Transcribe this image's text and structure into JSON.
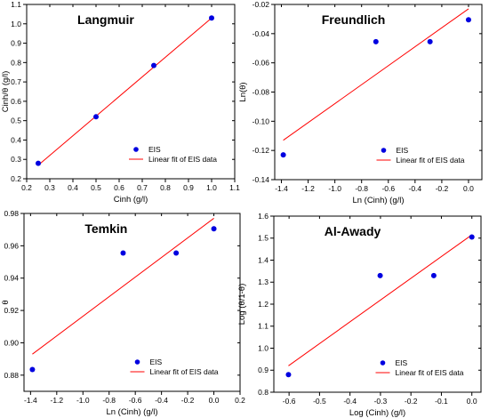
{
  "colors": {
    "point": "#0000e0",
    "fit_line": "#ff0000",
    "axis": "#000000"
  },
  "chart_data": [
    {
      "type": "scatter",
      "title": "Langmuir",
      "xlabel": "Cinh (g/l)",
      "ylabel": "Cinh/θ (g/l)",
      "xlim": [
        0.2,
        1.1
      ],
      "ylim": [
        0.2,
        1.1
      ],
      "xticks": [
        0.2,
        0.3,
        0.4,
        0.5,
        0.6,
        0.7,
        0.8,
        0.9,
        1.0,
        1.1
      ],
      "yticks": [
        0.2,
        0.3,
        0.4,
        0.5,
        0.6,
        0.7,
        0.8,
        0.9,
        1.0,
        1.1
      ],
      "xtick_labels": [
        "0.2",
        "0.3",
        "0.4",
        "0.5",
        "0.6",
        "0.7",
        "0.8",
        "0.9",
        "1.0",
        "1.1"
      ],
      "ytick_labels": [
        "0.2",
        "0.3",
        "0.4",
        "0.5",
        "0.6",
        "0.7",
        "0.8",
        "0.9",
        "1.0",
        "1.1"
      ],
      "points": {
        "x": [
          0.25,
          0.5,
          0.75,
          1.0
        ],
        "y": [
          0.28,
          0.52,
          0.785,
          1.03
        ]
      },
      "fit_line": {
        "x": [
          0.25,
          1.0
        ],
        "y": [
          0.27,
          1.03
        ]
      },
      "legend": {
        "points_label": "EIS",
        "fit_label": "Linear fit of EIS data",
        "position": "bottom-right"
      },
      "grid": false
    },
    {
      "type": "scatter",
      "title": "Freundlich",
      "xlabel": "Ln (Cinh) (g/l)",
      "ylabel": "Ln(θ)",
      "xlim": [
        -1.45,
        0.1
      ],
      "ylim": [
        -0.14,
        -0.02
      ],
      "xticks": [
        -1.4,
        -1.2,
        -1.0,
        -0.8,
        -0.6,
        -0.4,
        -0.2,
        0.0
      ],
      "yticks": [
        -0.14,
        -0.12,
        -0.1,
        -0.08,
        -0.06,
        -0.04,
        -0.02
      ],
      "xtick_labels": [
        "-1.4",
        "-1.2",
        "-1.0",
        "-0.8",
        "-0.6",
        "-0.4",
        "-0.2",
        "0.0"
      ],
      "ytick_labels": [
        "-0.14",
        "-0.12",
        "-0.10",
        "-0.08",
        "-0.06",
        "-0.04",
        "-0.02"
      ],
      "points": {
        "x": [
          -1.386,
          -0.693,
          -0.288,
          0.0
        ],
        "y": [
          -0.123,
          -0.0455,
          -0.0455,
          -0.0305
        ]
      },
      "fit_line": {
        "x": [
          -1.386,
          0.0
        ],
        "y": [
          -0.113,
          -0.023
        ]
      },
      "legend": {
        "points_label": "EIS",
        "fit_label": "Linear fit of EIS data",
        "position": "bottom-right"
      },
      "grid": false
    },
    {
      "type": "scatter",
      "title": "Temkin",
      "xlabel": "Ln (Cinh) (g/l)",
      "ylabel": "θ",
      "xlim": [
        -1.45,
        0.2
      ],
      "ylim": [
        0.87,
        0.98
      ],
      "xticks": [
        -1.4,
        -1.2,
        -1.0,
        -0.8,
        -0.6,
        -0.4,
        -0.2,
        0.0,
        0.2
      ],
      "yticks": [
        0.88,
        0.9,
        0.92,
        0.94,
        0.96,
        0.98
      ],
      "xtick_labels": [
        "-1.4",
        "-1.2",
        "-1.0",
        "-0.8",
        "-0.6",
        "-0.4",
        "-0.2",
        "0.0",
        "0.2"
      ],
      "ytick_labels": [
        "0.88",
        "0.90",
        "0.92",
        "0.94",
        "0.96",
        "0.98"
      ],
      "points": {
        "x": [
          -1.386,
          -0.693,
          -0.288,
          0.0
        ],
        "y": [
          0.8835,
          0.9555,
          0.9555,
          0.9705
        ]
      },
      "fit_line": {
        "x": [
          -1.386,
          0.0
        ],
        "y": [
          0.893,
          0.977
        ]
      },
      "legend": {
        "points_label": "EIS",
        "fit_label": "Linear fit of EIS data",
        "position": "bottom-right"
      },
      "grid": false
    },
    {
      "type": "scatter",
      "title": "Al-Awady",
      "xlabel": "Log (Cinh) (g/l)",
      "ylabel": "Log (θ/1-θ)",
      "xlim": [
        -0.65,
        0.03
      ],
      "ylim": [
        0.8,
        1.6
      ],
      "xticks": [
        -0.6,
        -0.5,
        -0.4,
        -0.3,
        -0.2,
        -0.1,
        0.0
      ],
      "yticks": [
        0.8,
        0.9,
        1.0,
        1.1,
        1.2,
        1.3,
        1.4,
        1.5,
        1.6
      ],
      "xtick_labels": [
        "-0.6",
        "-0.5",
        "-0.4",
        "-0.3",
        "-0.2",
        "-0.1",
        "0.0"
      ],
      "ytick_labels": [
        "0.8",
        "0.9",
        "1.0",
        "1.1",
        "1.2",
        "1.3",
        "1.4",
        "1.5",
        "1.6"
      ],
      "points": {
        "x": [
          -0.602,
          -0.301,
          -0.125,
          0.0
        ],
        "y": [
          0.88,
          1.33,
          1.33,
          1.505
        ]
      },
      "fit_line": {
        "x": [
          -0.602,
          0.0
        ],
        "y": [
          0.92,
          1.515
        ]
      },
      "legend": {
        "points_label": "EIS",
        "fit_label": "Linear fit of EIS data",
        "position": "bottom-right"
      },
      "grid": false
    }
  ]
}
